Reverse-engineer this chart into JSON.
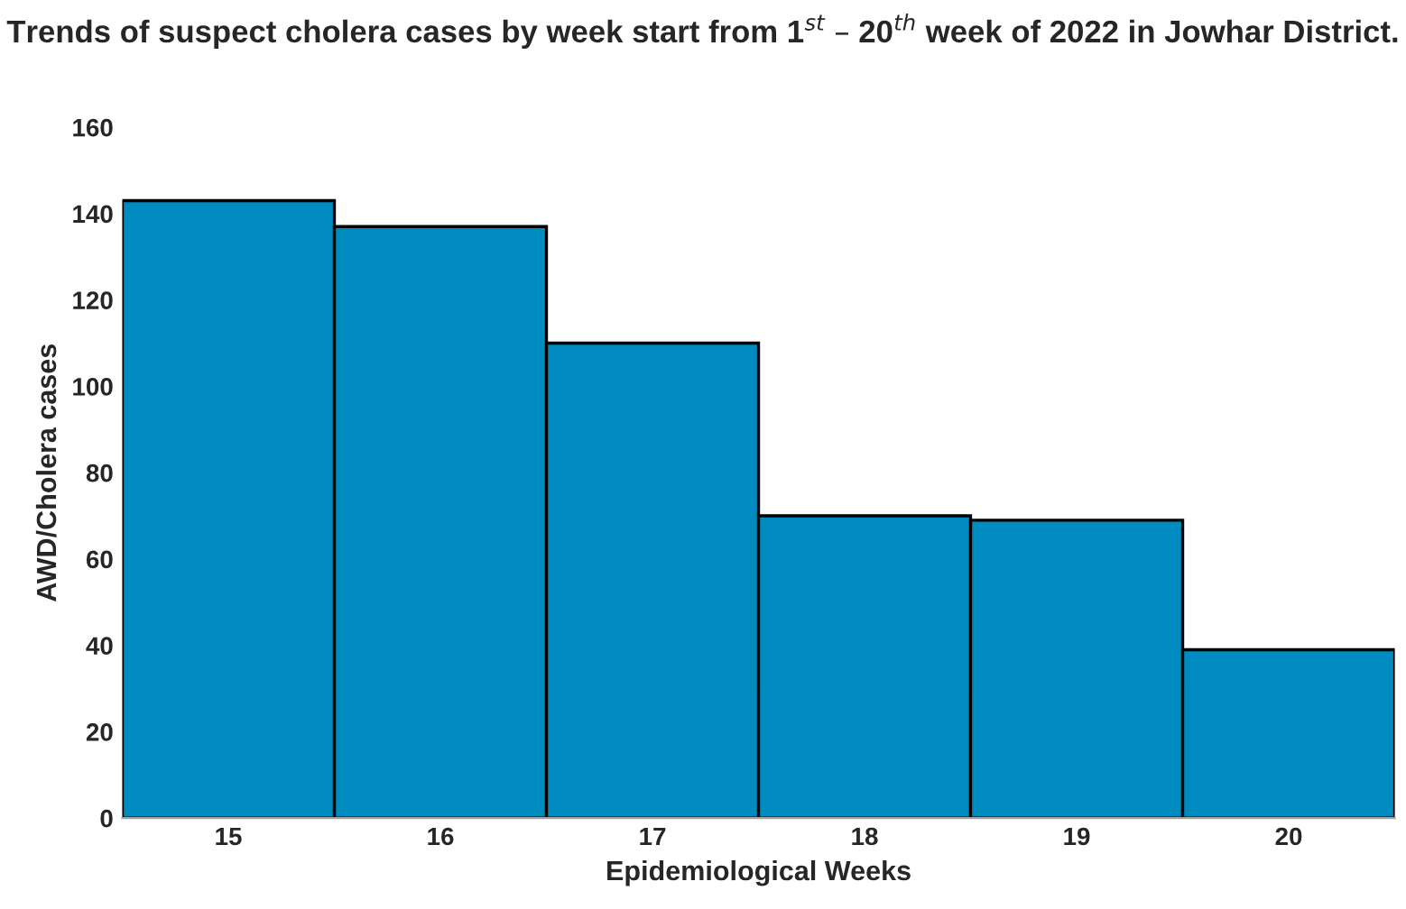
{
  "chart_data": {
    "type": "bar",
    "title": "Trends of suspect cholera cases by week start from 1$^{st}$ – 20$^{th}$ week of 2022 in Jowhar District.",
    "xlabel": "Epidemiological Weeks",
    "ylabel": "AWD/Cholera cases",
    "categories": [
      "15",
      "16",
      "17",
      "18",
      "19",
      "20"
    ],
    "values": [
      143,
      137,
      110,
      70,
      69,
      39
    ],
    "color": "#008bc0",
    "ylim": [
      0,
      160
    ],
    "yticks": [
      0,
      20,
      40,
      60,
      80,
      100,
      120,
      140,
      160
    ],
    "grid": false,
    "legend": false
  }
}
